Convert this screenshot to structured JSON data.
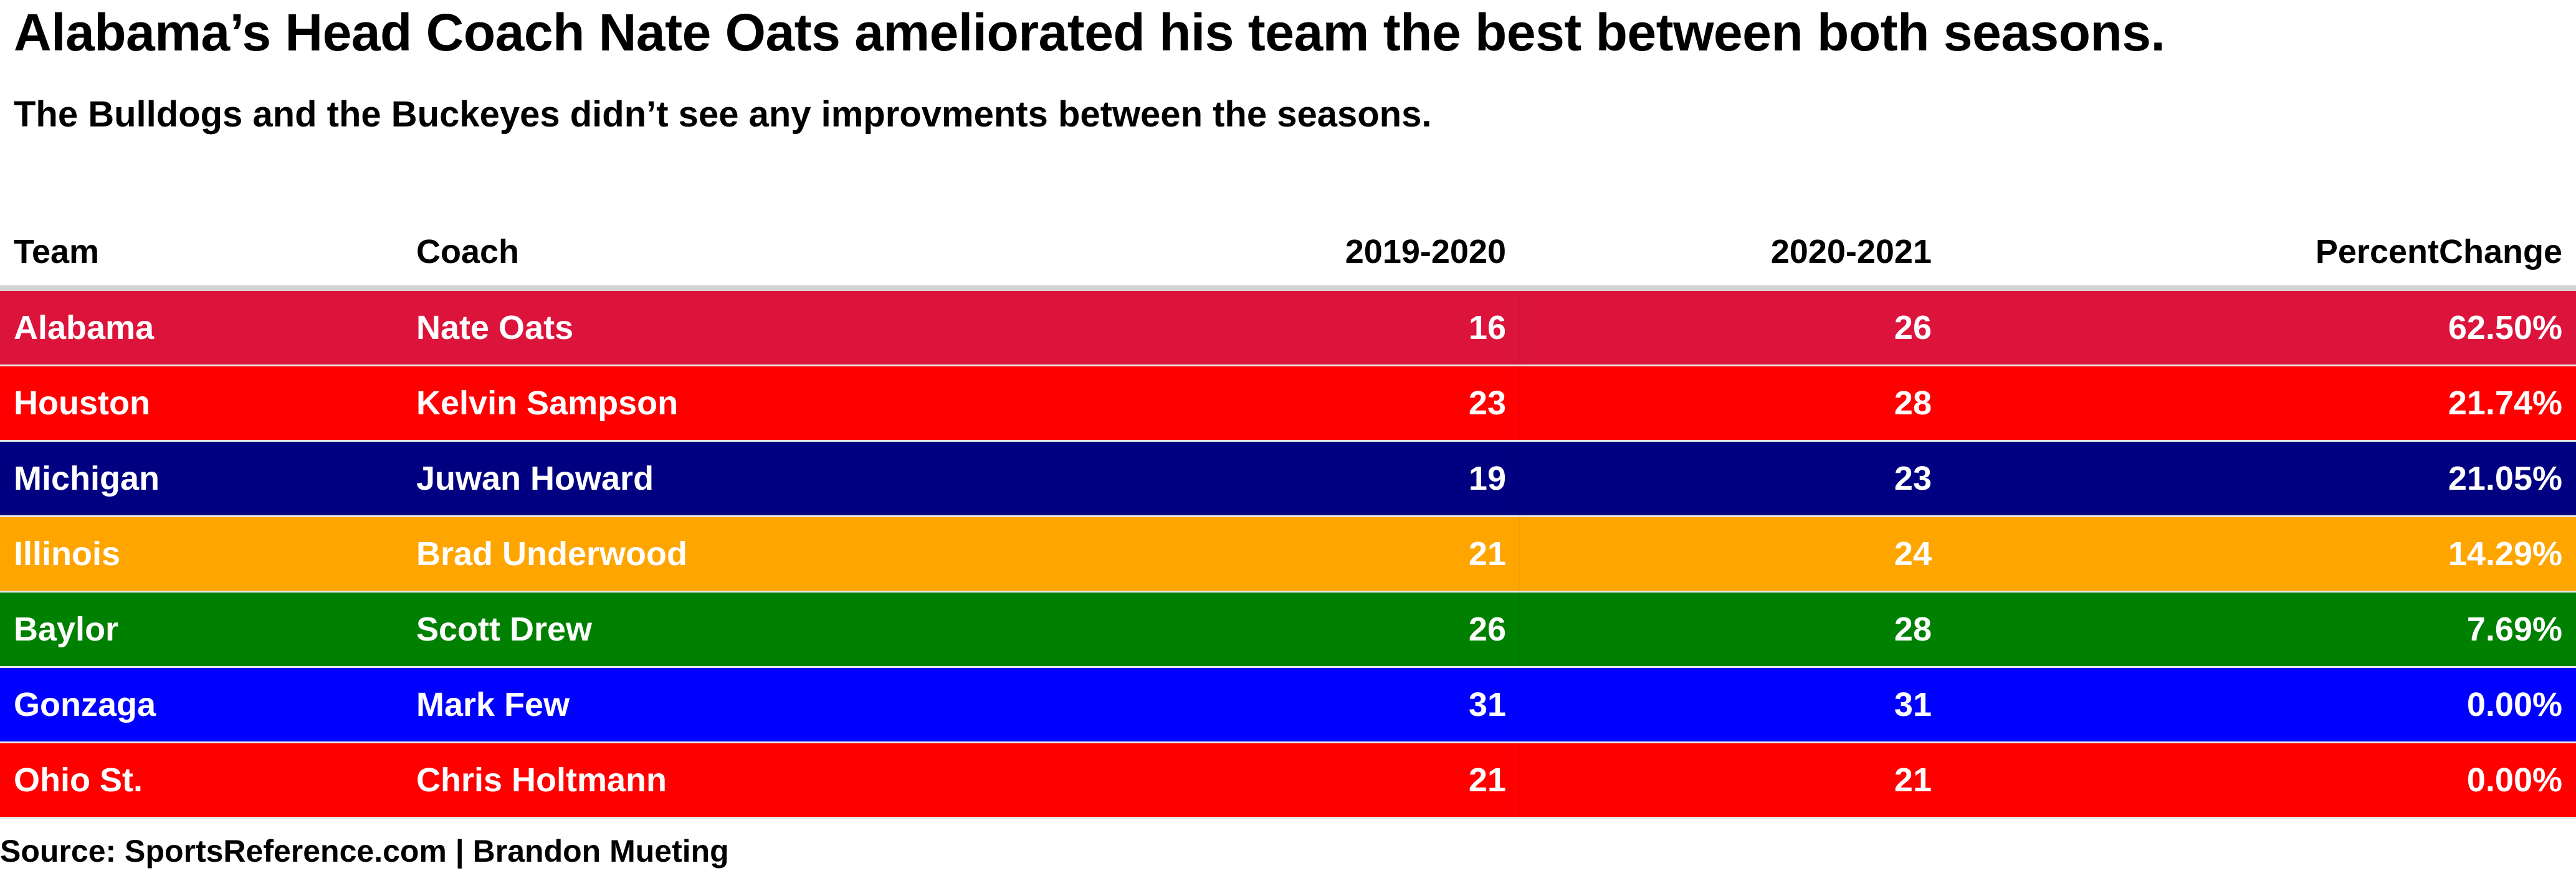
{
  "title": "Alabama’s Head Coach Nate Oats ameliorated his team the best between both seasons.",
  "subtitle": "The Bulldogs and the Buckeyes didn’t see any improvments between the seasons.",
  "source": "Source: SportsReference.com | Brandon Mueting",
  "chart_data": {
    "type": "table",
    "columns": [
      "Team",
      "Coach",
      "2019-2020",
      "2020-2021",
      "PercentChange"
    ],
    "rows": [
      {
        "team": "Alabama",
        "coach": "Nate Oats",
        "y2019_2020": "16",
        "y2020_2021": "26",
        "percent_change": "62.50%",
        "color": "#dc143c"
      },
      {
        "team": "Houston",
        "coach": "Kelvin Sampson",
        "y2019_2020": "23",
        "y2020_2021": "28",
        "percent_change": "21.74%",
        "color": "#ff0000"
      },
      {
        "team": "Michigan",
        "coach": "Juwan Howard",
        "y2019_2020": "19",
        "y2020_2021": "23",
        "percent_change": "21.05%",
        "color": "#000080"
      },
      {
        "team": "Illinois",
        "coach": "Brad Underwood",
        "y2019_2020": "21",
        "y2020_2021": "24",
        "percent_change": "14.29%",
        "color": "#ffa500"
      },
      {
        "team": "Baylor",
        "coach": "Scott Drew",
        "y2019_2020": "26",
        "y2020_2021": "28",
        "percent_change": "7.69%",
        "color": "#008000"
      },
      {
        "team": "Gonzaga",
        "coach": "Mark Few",
        "y2019_2020": "31",
        "y2020_2021": "31",
        "percent_change": "0.00%",
        "color": "#0000ff"
      },
      {
        "team": "Ohio St.",
        "coach": "Chris Holtmann",
        "y2019_2020": "21",
        "y2020_2021": "21",
        "percent_change": "0.00%",
        "color": "#ff0000"
      }
    ]
  }
}
